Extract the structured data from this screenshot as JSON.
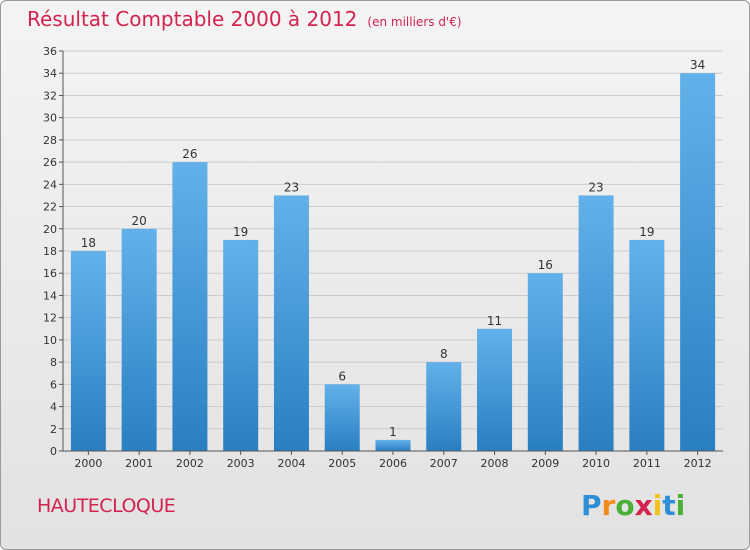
{
  "title": "Résultat Comptable 2000 à 2012",
  "subtitle": "(en milliers d'€)",
  "commune": "HAUTECLOQUE",
  "brand": {
    "letters": [
      "P",
      "r",
      "o",
      "x",
      "i",
      "t",
      "i"
    ],
    "colors": [
      "#2f8fd6",
      "#f28a1e",
      "#4caf3a",
      "#d3234e",
      "#f2c11e",
      "#2f8fd6",
      "#4caf3a"
    ]
  },
  "colors": {
    "bar_light": "#62b1ea",
    "bar_dark": "#2a7fc1",
    "title": "#d3234e"
  },
  "chart_data": {
    "type": "bar",
    "title": "Résultat Comptable 2000 à 2012",
    "xlabel": "",
    "ylabel": "(en milliers d'€)",
    "categories": [
      "2000",
      "2001",
      "2002",
      "2003",
      "2004",
      "2005",
      "2006",
      "2007",
      "2008",
      "2009",
      "2010",
      "2011",
      "2012"
    ],
    "values": [
      18,
      20,
      26,
      19,
      23,
      6,
      1,
      8,
      11,
      16,
      23,
      19,
      34
    ],
    "ylim": [
      0,
      36
    ],
    "yticks": [
      0,
      2,
      4,
      6,
      8,
      10,
      12,
      14,
      16,
      18,
      20,
      22,
      24,
      26,
      28,
      30,
      32,
      34,
      36
    ],
    "grid": true,
    "legend": "none"
  }
}
